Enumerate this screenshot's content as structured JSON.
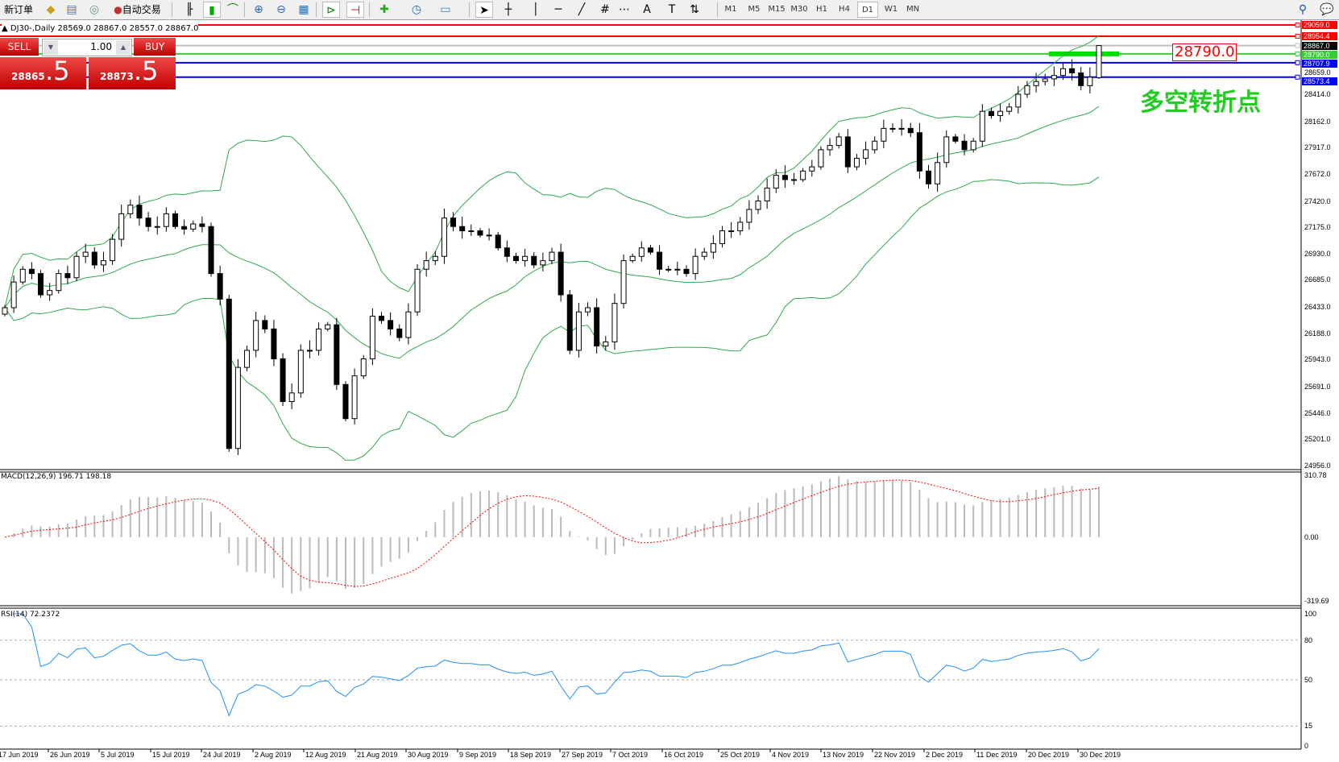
{
  "toolbar": {
    "new_order": "新订单",
    "auto_trading": "自动交易",
    "icons": [
      "folder-icon",
      "market-watch-icon",
      "signals-icon",
      "auto-trading-icon",
      "bar-chart-icon",
      "candlestick-icon",
      "line-chart-icon",
      "zoom-in-icon",
      "zoom-out-icon",
      "tile-windows-icon",
      "autoscroll-icon",
      "chart-shift-icon",
      "indicators-icon",
      "periods-icon",
      "templates-icon",
      "cursor-icon",
      "crosshair-icon",
      "vertical-line-icon",
      "horizontal-line-icon",
      "trendline-icon",
      "fibonacci-icon",
      "grid-icon",
      "text-icon",
      "text-label-icon",
      "arrows-icon",
      "search-icon",
      "chat-icon"
    ],
    "timeframes": [
      "M1",
      "M5",
      "M15",
      "M30",
      "H1",
      "H4",
      "D1",
      "W1",
      "MN"
    ],
    "active_timeframe": "D1"
  },
  "chart": {
    "title": "DJ30-,Daily  28569.0 28867.0 28557.0 28867.0",
    "annotation": "多空转折点",
    "price_box": "28790.0"
  },
  "trade_panel": {
    "sell_label": "SELL",
    "buy_label": "BUY",
    "lot": "1.00",
    "sell_price_main": "28865",
    "sell_price_pip": ".5",
    "buy_price_main": "28873",
    "buy_price_pip": ".5"
  },
  "levels": [
    {
      "price": 29059.0,
      "label": "29059.0",
      "color": "#ff0000"
    },
    {
      "price": 28954.4,
      "label": "28954.4",
      "color": "#ff0000"
    },
    {
      "price": 28867.0,
      "label": "28867.0",
      "color": "#000000"
    },
    {
      "price": 28790.0,
      "label": "28790.0",
      "color": "#33cc33"
    },
    {
      "price": 28707.9,
      "label": "28707.9",
      "color": "#0000ff"
    },
    {
      "price": 28573.4,
      "label": "28573.4",
      "color": "#0000ff"
    }
  ],
  "price_axis": [
    "28659.0",
    "28414.0",
    "28162.0",
    "27917.0",
    "27672.0",
    "27420.0",
    "27175.0",
    "26930.0",
    "26685.0",
    "26433.0",
    "26188.0",
    "25943.0",
    "25691.0",
    "25446.0",
    "25201.0",
    "24956.0"
  ],
  "macd": {
    "label": "MACD(12,26,9) 196.71 198.18",
    "axis": [
      "310.78",
      "0.00",
      "-319.69"
    ]
  },
  "rsi": {
    "label": "RSI(14) 72.2372",
    "axis": [
      "100",
      "80",
      "50",
      "15",
      "0"
    ]
  },
  "dates": [
    "17 Jun 2019",
    "26 Jun 2019",
    "5 Jul 2019",
    "15 Jul 2019",
    "24 Jul 2019",
    "2 Aug 2019",
    "12 Aug 2019",
    "21 Aug 2019",
    "30 Aug 2019",
    "9 Sep 2019",
    "18 Sep 2019",
    "27 Sep 2019",
    "7 Oct 2019",
    "16 Oct 2019",
    "25 Oct 2019",
    "4 Nov 2019",
    "13 Nov 2019",
    "22 Nov 2019",
    "2 Dec 2019",
    "11 Dec 2019",
    "20 Dec 2019",
    "30 Dec 2019"
  ],
  "chart_data": {
    "type": "candlestick",
    "symbol": "DJ30-",
    "timeframe": "Daily",
    "ylim": [
      24956,
      29059
    ],
    "last_bar": {
      "open": 28569.0,
      "high": 28867.0,
      "low": 28557.0,
      "close": 28867.0
    },
    "closes": [
      26426,
      26665,
      26784,
      26744,
      26546,
      26586,
      26744,
      26705,
      26904,
      26943,
      26824,
      26864,
      27063,
      27301,
      27381,
      27261,
      27182,
      27182,
      27301,
      27182,
      27158,
      27206,
      27182,
      26744,
      26506,
      25115,
      25870,
      26029,
      26307,
      26228,
      25950,
      25552,
      25632,
      26029,
      26029,
      26228,
      26267,
      25711,
      25393,
      25791,
      25950,
      26347,
      26307,
      26228,
      26148,
      26387,
      26784,
      26864,
      26904,
      27261,
      27182,
      27142,
      27142,
      27102,
      27102,
      26983,
      26904,
      26864,
      26904,
      26824,
      26864,
      26943,
      26546,
      26029,
      26387,
      26426,
      26069,
      26108,
      26466,
      26864,
      26904,
      26983,
      26943,
      26784,
      26784,
      26784,
      26744,
      26904,
      26943,
      27023,
      27142,
      27142,
      27222,
      27341,
      27420,
      27540,
      27659,
      27619,
      27619,
      27699,
      27738,
      27897,
      27937,
      28017,
      27738,
      27818,
      27897,
      27977,
      28096,
      28096,
      28096,
      28056,
      27699,
      27579,
      27778,
      28017,
      27977,
      27897,
      27977,
      28255,
      28215,
      28255,
      28295,
      28414,
      28494,
      28533,
      28557,
      28589,
      28652,
      28613,
      28494,
      28573,
      28867
    ],
    "indicators": [
      "Bollinger Bands",
      "MACD(12,26,9)",
      "RSI(14)"
    ],
    "rsi_levels": [
      80,
      50,
      15
    ]
  }
}
